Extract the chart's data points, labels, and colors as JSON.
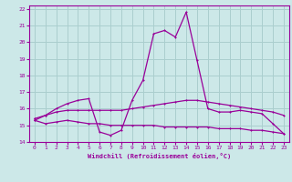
{
  "xlabel": "Windchill (Refroidissement éolien,°C)",
  "background_color": "#cce8e8",
  "grid_color": "#aacece",
  "line_color": "#990099",
  "xlim": [
    -0.5,
    23.5
  ],
  "ylim": [
    14,
    22.2
  ],
  "yticks": [
    14,
    15,
    16,
    17,
    18,
    19,
    20,
    21,
    22
  ],
  "xticks": [
    0,
    1,
    2,
    3,
    4,
    5,
    6,
    7,
    8,
    9,
    10,
    11,
    12,
    13,
    14,
    15,
    16,
    17,
    18,
    19,
    20,
    21,
    22,
    23
  ],
  "line1_x": [
    0,
    1,
    2,
    3,
    4,
    5,
    6,
    7,
    8,
    9,
    10,
    11,
    12,
    13,
    14,
    15,
    16,
    17,
    18,
    19,
    20,
    21,
    22,
    23
  ],
  "line1_y": [
    15.3,
    15.6,
    16.0,
    16.3,
    16.5,
    16.6,
    14.6,
    14.4,
    14.7,
    16.5,
    17.7,
    20.5,
    20.7,
    20.3,
    21.8,
    18.9,
    16.0,
    15.8,
    15.8,
    15.9,
    15.8,
    15.7,
    15.1,
    14.5
  ],
  "line2_x": [
    0,
    1,
    2,
    3,
    4,
    5,
    6,
    7,
    8,
    9,
    10,
    11,
    12,
    13,
    14,
    15,
    16,
    17,
    18,
    19,
    20,
    21,
    22,
    23
  ],
  "line2_y": [
    15.4,
    15.6,
    15.8,
    15.9,
    15.9,
    15.9,
    15.9,
    15.9,
    15.9,
    16.0,
    16.1,
    16.2,
    16.3,
    16.4,
    16.5,
    16.5,
    16.4,
    16.3,
    16.2,
    16.1,
    16.0,
    15.9,
    15.8,
    15.6
  ],
  "line3_x": [
    0,
    1,
    2,
    3,
    4,
    5,
    6,
    7,
    8,
    9,
    10,
    11,
    12,
    13,
    14,
    15,
    16,
    17,
    18,
    19,
    20,
    21,
    22,
    23
  ],
  "line3_y": [
    15.3,
    15.1,
    15.2,
    15.3,
    15.2,
    15.1,
    15.1,
    15.0,
    15.0,
    15.0,
    15.0,
    15.0,
    14.9,
    14.9,
    14.9,
    14.9,
    14.9,
    14.8,
    14.8,
    14.8,
    14.7,
    14.7,
    14.6,
    14.5
  ]
}
